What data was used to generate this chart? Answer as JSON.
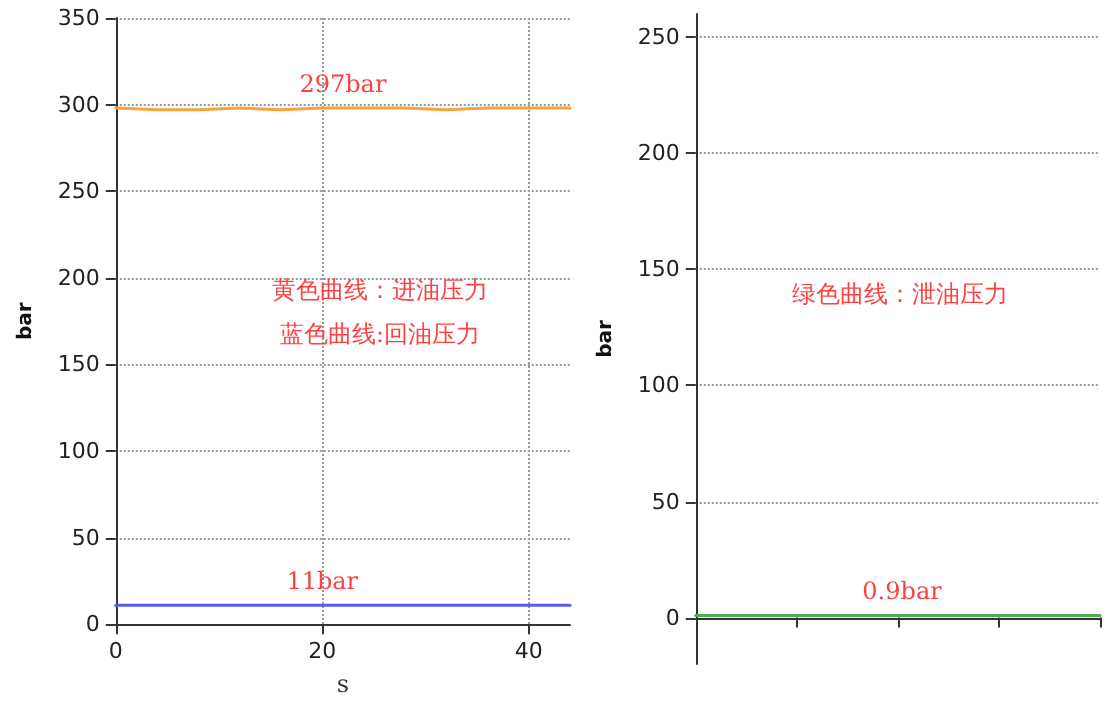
{
  "chart_data": [
    {
      "type": "line",
      "xlabel": "s",
      "ylabel": "bar",
      "xlim": [
        0,
        44
      ],
      "xticks": [
        0,
        20,
        40
      ],
      "ylim": [
        0,
        350
      ],
      "yticks": [
        0,
        50,
        100,
        150,
        200,
        250,
        300,
        350
      ],
      "grid": true,
      "marker": "none",
      "line_style": "solid",
      "series": [
        {
          "color": "#f5a540",
          "x": [
            0,
            4,
            8,
            12,
            16,
            20,
            24,
            28,
            32,
            36,
            40,
            44
          ],
          "values": [
            298,
            297,
            297,
            298,
            297,
            298,
            298,
            298,
            297,
            298,
            298,
            298
          ]
        },
        {
          "color": "#5a5af0",
          "x": [
            0,
            44
          ],
          "values": [
            11,
            11
          ]
        }
      ],
      "annotations": [
        {
          "text": "297bar",
          "x": 22,
          "y": 298
        },
        {
          "text": "11bar",
          "x": 20,
          "y": 11
        },
        "黄色曲线：进油压力",
        "蓝色曲线:回油压力"
      ]
    },
    {
      "type": "line",
      "ylabel": "bar",
      "categories": [
        null,
        null,
        null,
        null,
        null
      ],
      "ylim": [
        -20,
        260
      ],
      "yticks": [
        0,
        50,
        100,
        150,
        200,
        250
      ],
      "grid": "y",
      "tick_labels": "y",
      "marker": "none",
      "line_style": "solid",
      "series": [
        {
          "color": "#4caf50",
          "values": [
            0.9,
            0.9,
            0.9,
            0.9,
            0.9
          ]
        }
      ],
      "annotations": [
        {
          "text": "0.9bar",
          "y": 0.9
        },
        "绿色曲线：泄油压力"
      ]
    }
  ]
}
